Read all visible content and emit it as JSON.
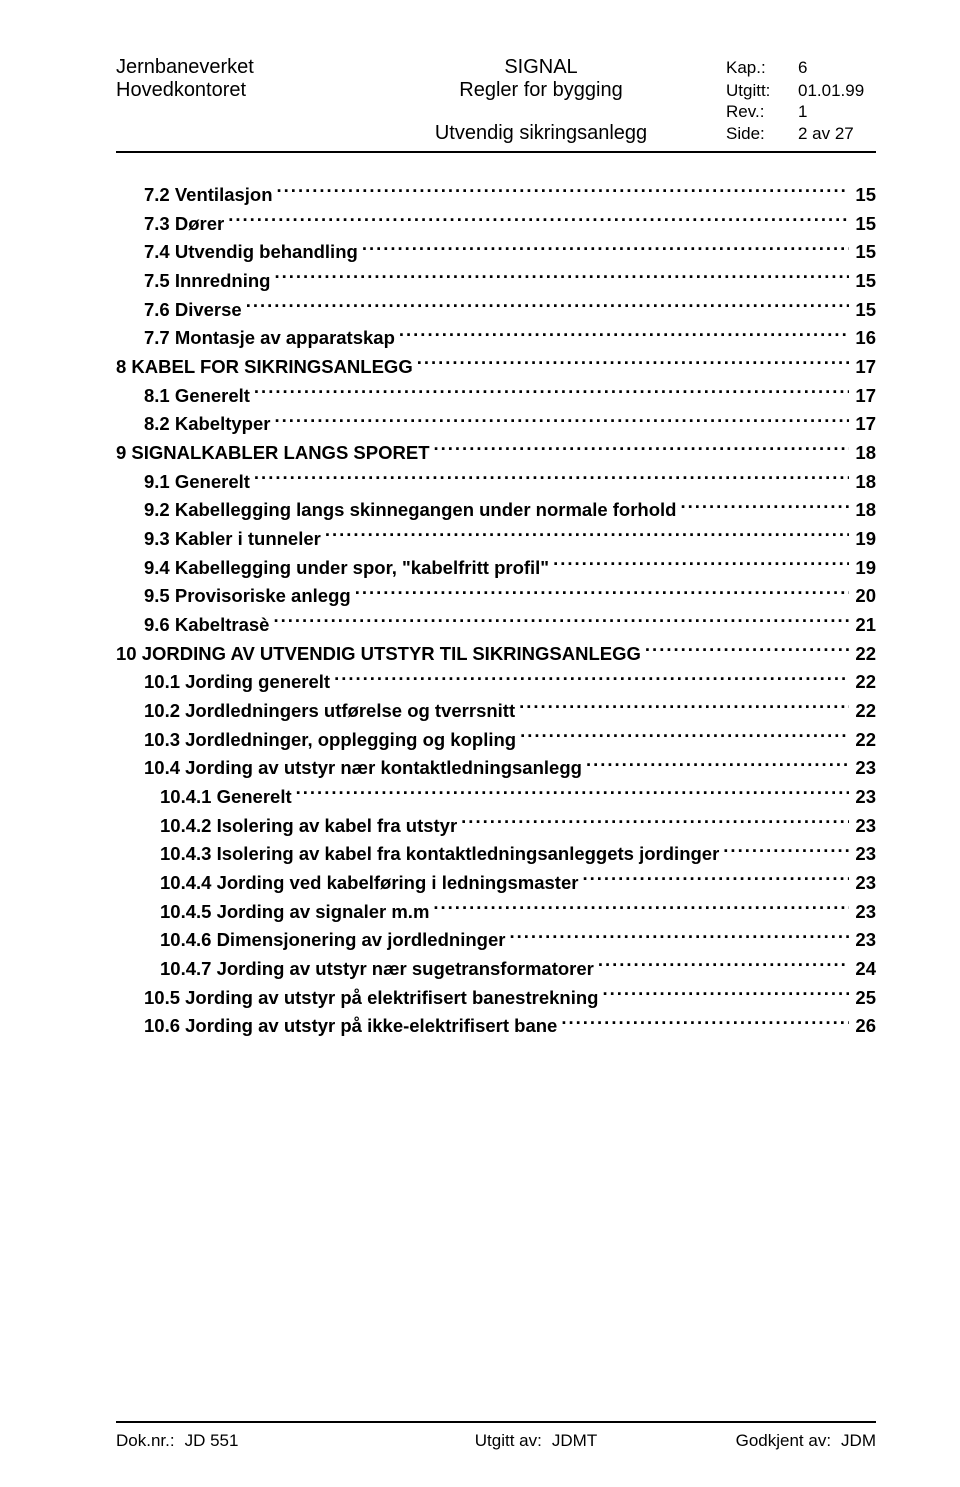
{
  "header": {
    "org": "Jernbaneverket",
    "office": "Hovedkontoret",
    "title1": "SIGNAL",
    "title2": "Regler for bygging",
    "title3": "Utvendig sikringsanlegg",
    "kap_label": "Kap.:",
    "kap_value": "6",
    "utgitt_label": "Utgitt:",
    "utgitt_value": "01.01.99",
    "rev_label": "Rev.:",
    "rev_value": "1",
    "side_label": "Side:",
    "side_value": "2 av 27"
  },
  "toc": [
    {
      "level": 1,
      "text": "7.2 Ventilasjon",
      "page": "15"
    },
    {
      "level": 1,
      "text": "7.3 Dører",
      "page": "15"
    },
    {
      "level": 1,
      "text": "7.4 Utvendig behandling",
      "page": "15"
    },
    {
      "level": 1,
      "text": "7.5 Innredning",
      "page": "15"
    },
    {
      "level": 1,
      "text": "7.6 Diverse",
      "page": "15"
    },
    {
      "level": 1,
      "text": "7.7 Montasje av apparatskap",
      "page": "16"
    },
    {
      "level": 0,
      "text": "8 KABEL FOR SIKRINGSANLEGG",
      "page": "17"
    },
    {
      "level": 1,
      "text": "8.1 Generelt",
      "page": "17"
    },
    {
      "level": 1,
      "text": "8.2 Kabeltyper",
      "page": "17"
    },
    {
      "level": 0,
      "text": "9 SIGNALKABLER LANGS SPORET",
      "page": "18"
    },
    {
      "level": 1,
      "text": "9.1 Generelt",
      "page": "18"
    },
    {
      "level": 1,
      "text": "9.2 Kabellegging langs skinnegangen under normale forhold",
      "page": "18"
    },
    {
      "level": 1,
      "text": "9.3 Kabler i tunneler",
      "page": "19"
    },
    {
      "level": 1,
      "text": "9.4 Kabellegging under spor, \"kabelfritt profil\"",
      "page": "19"
    },
    {
      "level": 1,
      "text": "9.5 Provisoriske anlegg",
      "page": "20"
    },
    {
      "level": 1,
      "text": "9.6 Kabeltrasè",
      "page": "21"
    },
    {
      "level": 0,
      "text": "10 JORDING AV UTVENDIG UTSTYR TIL SIKRINGSANLEGG",
      "page": "22"
    },
    {
      "level": 1,
      "text": "10.1 Jording generelt",
      "page": "22"
    },
    {
      "level": 1,
      "text": "10.2 Jordledningers utførelse og tverrsnitt",
      "page": "22"
    },
    {
      "level": 1,
      "text": "10.3 Jordledninger, opplegging og kopling",
      "page": "22"
    },
    {
      "level": 1,
      "text": "10.4 Jording av utstyr nær kontaktledningsanlegg",
      "page": "23"
    },
    {
      "level": 2,
      "text": "10.4.1 Generelt",
      "page": "23"
    },
    {
      "level": 2,
      "text": "10.4.2 Isolering av kabel fra utstyr",
      "page": "23"
    },
    {
      "level": 2,
      "text": "10.4.3 Isolering av kabel fra kontaktledningsanleggets jordinger",
      "page": "23"
    },
    {
      "level": 2,
      "text": "10.4.4 Jording ved kabelføring i ledningsmaster",
      "page": "23"
    },
    {
      "level": 2,
      "text": "10.4.5 Jording av signaler m.m",
      "page": "23"
    },
    {
      "level": 2,
      "text": "10.4.6 Dimensjonering av jordledninger",
      "page": "23"
    },
    {
      "level": 2,
      "text": "10.4.7 Jording av utstyr nær sugetransformatorer",
      "page": "24"
    },
    {
      "level": 1,
      "text": "10.5 Jording av utstyr på elektrifisert banestrekning",
      "page": "25"
    },
    {
      "level": 1,
      "text": "10.6 Jording av utstyr på ikke-elektrifisert bane",
      "page": "26"
    }
  ],
  "footer": {
    "doknr_label": "Dok.nr.:",
    "doknr_value": "JD 551",
    "utgittav_label": "Utgitt av:",
    "utgittav_value": "JDMT",
    "godkjent_label": "Godkjent av:",
    "godkjent_value": "JDM"
  }
}
